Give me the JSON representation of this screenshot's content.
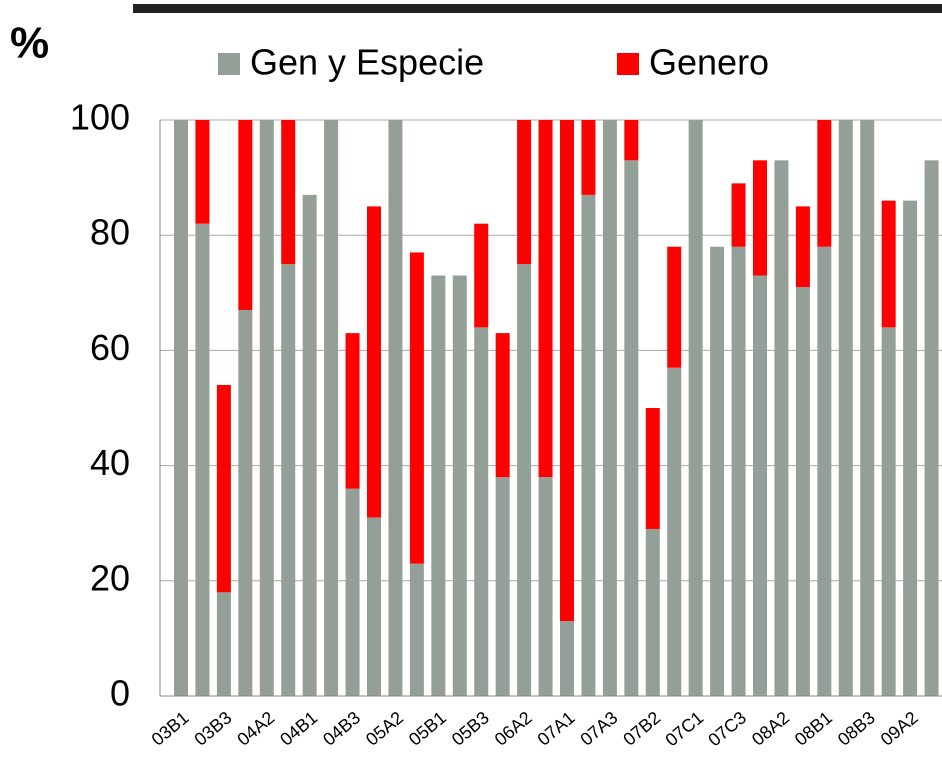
{
  "chart_data": {
    "type": "stacked_bar",
    "ylabel": "%",
    "categories": [
      "03B1",
      null,
      "03B3",
      null,
      "04A2",
      null,
      "04B1",
      null,
      "04B3",
      null,
      "05A2",
      null,
      "05B1",
      null,
      "05B3",
      null,
      "06A2",
      null,
      "07A1",
      null,
      "07A3",
      null,
      "07B2",
      null,
      "07C1",
      null,
      "07C3",
      null,
      "08A2",
      null,
      "08B1",
      null,
      "08B3",
      null,
      "09A2",
      null
    ],
    "series": [
      {
        "name": "Gen y Especie",
        "color": "#949f98",
        "values": [
          100,
          82,
          18,
          67,
          100,
          75,
          87,
          100,
          36,
          31,
          100,
          23,
          73,
          73,
          64,
          38,
          75,
          38,
          13,
          87,
          100,
          93,
          29,
          57,
          100,
          78,
          78,
          73,
          93,
          71,
          78,
          100,
          100,
          64,
          86,
          93
        ]
      },
      {
        "name": "Genero",
        "color": "#ff0000",
        "values": [
          0,
          18,
          36,
          33,
          0,
          25,
          0,
          0,
          27,
          54,
          0,
          54,
          0,
          0,
          18,
          25,
          25,
          62,
          87,
          13,
          0,
          7,
          21,
          21,
          0,
          0,
          11,
          20,
          0,
          14,
          22,
          0,
          0,
          22,
          0,
          0
        ]
      }
    ],
    "ylim": [
      0,
      100
    ],
    "yticks": [
      0,
      20,
      40,
      60,
      80,
      100
    ],
    "grid": true
  }
}
